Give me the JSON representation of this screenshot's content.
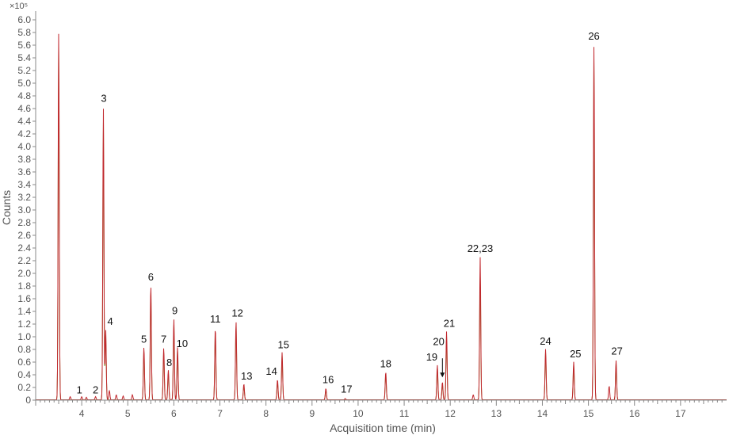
{
  "chart_data": {
    "type": "line",
    "title": "",
    "xlabel": "Acquisition time (min)",
    "ylabel": "Counts",
    "y_multiplier": "×10⁵",
    "xlim": [
      3.0,
      18.0
    ],
    "ylim": [
      0,
      6.0
    ],
    "x_ticks": [
      "4",
      "5",
      "6",
      "7",
      "8",
      "9",
      "10",
      "11",
      "12",
      "13",
      "14",
      "15",
      "16",
      "17"
    ],
    "y_ticks": [
      "0",
      "0.2",
      "0.4",
      "0.6",
      "0.8",
      "1.0",
      "1.2",
      "1.4",
      "1.6",
      "1.8",
      "2.0",
      "2.2",
      "2.4",
      "2.6",
      "2.8",
      "3.0",
      "3.2",
      "3.4",
      "3.6",
      "3.8",
      "4.0",
      "4.2",
      "4.4",
      "4.6",
      "4.8",
      "5.0",
      "5.2",
      "5.4",
      "5.6",
      "5.8",
      "6.0"
    ],
    "grid": false,
    "series": [
      {
        "color": "#c1272d",
        "peaks": [
          {
            "x": 3.5,
            "y": 5.8
          },
          {
            "x": 3.75,
            "y": 0.05
          },
          {
            "x": 4.0,
            "y": 0.05
          },
          {
            "x": 4.1,
            "y": 0.04
          },
          {
            "x": 4.3,
            "y": 0.05
          },
          {
            "x": 4.47,
            "y": 4.6
          },
          {
            "x": 4.52,
            "y": 1.12
          },
          {
            "x": 4.6,
            "y": 0.15
          },
          {
            "x": 4.75,
            "y": 0.08
          },
          {
            "x": 4.9,
            "y": 0.06
          },
          {
            "x": 5.1,
            "y": 0.08
          },
          {
            "x": 5.35,
            "y": 0.83
          },
          {
            "x": 5.5,
            "y": 1.82
          },
          {
            "x": 5.78,
            "y": 0.82
          },
          {
            "x": 5.88,
            "y": 0.47
          },
          {
            "x": 6.0,
            "y": 1.28
          },
          {
            "x": 6.08,
            "y": 0.83
          },
          {
            "x": 6.9,
            "y": 1.14
          },
          {
            "x": 7.35,
            "y": 1.24
          },
          {
            "x": 7.52,
            "y": 0.25
          },
          {
            "x": 8.25,
            "y": 0.32
          },
          {
            "x": 8.35,
            "y": 0.75
          },
          {
            "x": 9.3,
            "y": 0.18
          },
          {
            "x": 9.72,
            "y": 0.02
          },
          {
            "x": 10.6,
            "y": 0.44
          },
          {
            "x": 11.72,
            "y": 0.55
          },
          {
            "x": 11.83,
            "y": 0.28
          },
          {
            "x": 11.92,
            "y": 1.08
          },
          {
            "x": 12.5,
            "y": 0.08
          },
          {
            "x": 12.65,
            "y": 2.25
          },
          {
            "x": 14.07,
            "y": 0.8
          },
          {
            "x": 14.68,
            "y": 0.6
          },
          {
            "x": 15.12,
            "y": 5.6
          },
          {
            "x": 15.45,
            "y": 0.22
          },
          {
            "x": 15.6,
            "y": 0.62
          }
        ]
      },
      {
        "color": "#8a9a3a",
        "peaks": [
          {
            "x": 3.5,
            "y": 5.6
          },
          {
            "x": 4.47,
            "y": 4.4
          },
          {
            "x": 4.52,
            "y": 1.05
          },
          {
            "x": 5.35,
            "y": 0.78
          },
          {
            "x": 5.5,
            "y": 1.75
          },
          {
            "x": 5.78,
            "y": 0.76
          },
          {
            "x": 5.88,
            "y": 0.42
          },
          {
            "x": 6.0,
            "y": 1.2
          },
          {
            "x": 6.08,
            "y": 0.78
          },
          {
            "x": 6.9,
            "y": 1.08
          },
          {
            "x": 7.35,
            "y": 1.18
          },
          {
            "x": 7.52,
            "y": 0.22
          },
          {
            "x": 8.25,
            "y": 0.28
          },
          {
            "x": 8.35,
            "y": 0.7
          },
          {
            "x": 9.3,
            "y": 0.15
          },
          {
            "x": 10.6,
            "y": 0.4
          },
          {
            "x": 11.72,
            "y": 0.5
          },
          {
            "x": 11.83,
            "y": 0.24
          },
          {
            "x": 11.92,
            "y": 1.0
          },
          {
            "x": 12.65,
            "y": 1.95
          },
          {
            "x": 14.07,
            "y": 0.75
          },
          {
            "x": 14.68,
            "y": 0.55
          },
          {
            "x": 15.12,
            "y": 5.4
          },
          {
            "x": 15.6,
            "y": 0.58
          }
        ]
      }
    ],
    "annotations": [
      {
        "text": "1",
        "x": 3.95,
        "y": 0.07
      },
      {
        "text": "2",
        "x": 4.3,
        "y": 0.07
      },
      {
        "text": "3",
        "x": 4.48,
        "y": 4.67
      },
      {
        "text": "4",
        "x": 4.62,
        "y": 1.15
      },
      {
        "text": "5",
        "x": 5.35,
        "y": 0.87
      },
      {
        "text": "6",
        "x": 5.5,
        "y": 1.85
      },
      {
        "text": "7",
        "x": 5.78,
        "y": 0.87
      },
      {
        "text": "8",
        "x": 5.9,
        "y": 0.5
      },
      {
        "text": "9",
        "x": 6.02,
        "y": 1.32
      },
      {
        "text": "10",
        "x": 6.18,
        "y": 0.8
      },
      {
        "text": "11",
        "x": 6.9,
        "y": 1.19
      },
      {
        "text": "12",
        "x": 7.38,
        "y": 1.28
      },
      {
        "text": "13",
        "x": 7.58,
        "y": 0.29
      },
      {
        "text": "14",
        "x": 8.12,
        "y": 0.36
      },
      {
        "text": "15",
        "x": 8.38,
        "y": 0.78
      },
      {
        "text": "16",
        "x": 9.35,
        "y": 0.23
      },
      {
        "text": "17",
        "x": 9.75,
        "y": 0.08
      },
      {
        "text": "18",
        "x": 10.6,
        "y": 0.48
      },
      {
        "text": "19",
        "x": 11.6,
        "y": 0.59
      },
      {
        "text": "20",
        "x": 11.75,
        "y": 0.83
      },
      {
        "text": "21",
        "x": 11.98,
        "y": 1.12
      },
      {
        "text": "22,23",
        "x": 12.65,
        "y": 2.3
      },
      {
        "text": "24",
        "x": 14.07,
        "y": 0.84
      },
      {
        "text": "25",
        "x": 14.72,
        "y": 0.64
      },
      {
        "text": "26",
        "x": 15.12,
        "y": 5.65
      },
      {
        "text": "27",
        "x": 15.62,
        "y": 0.68
      }
    ]
  }
}
